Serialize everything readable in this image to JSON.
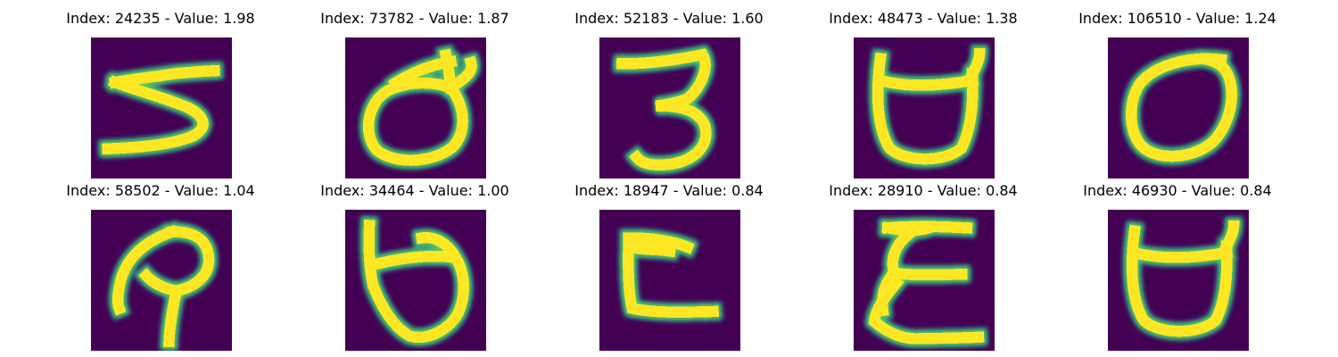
{
  "figure": {
    "background_color": "#ffffff",
    "colormap": "viridis",
    "image_background_color": "#440154",
    "stroke_colors": {
      "outer": "#21918c",
      "mid": "#5ec962",
      "inner": "#fde725"
    },
    "title_template": "Index: {index} - Value: {value}",
    "panels": [
      {
        "index": "24235",
        "value": "1.98",
        "glyph": "5"
      },
      {
        "index": "73782",
        "value": "1.87",
        "glyph": "d"
      },
      {
        "index": "52183",
        "value": "1.60",
        "glyph": "3"
      },
      {
        "index": "48473",
        "value": "1.38",
        "glyph": "U"
      },
      {
        "index": "106510",
        "value": "1.24",
        "glyph": "0"
      },
      {
        "index": "58502",
        "value": "1.04",
        "glyph": "P"
      },
      {
        "index": "34464",
        "value": "1.00",
        "glyph": "b"
      },
      {
        "index": "18947",
        "value": "0.84",
        "glyph": "C"
      },
      {
        "index": "28910",
        "value": "0.84",
        "glyph": "E"
      },
      {
        "index": "46930",
        "value": "0.84",
        "glyph": "U"
      }
    ]
  }
}
